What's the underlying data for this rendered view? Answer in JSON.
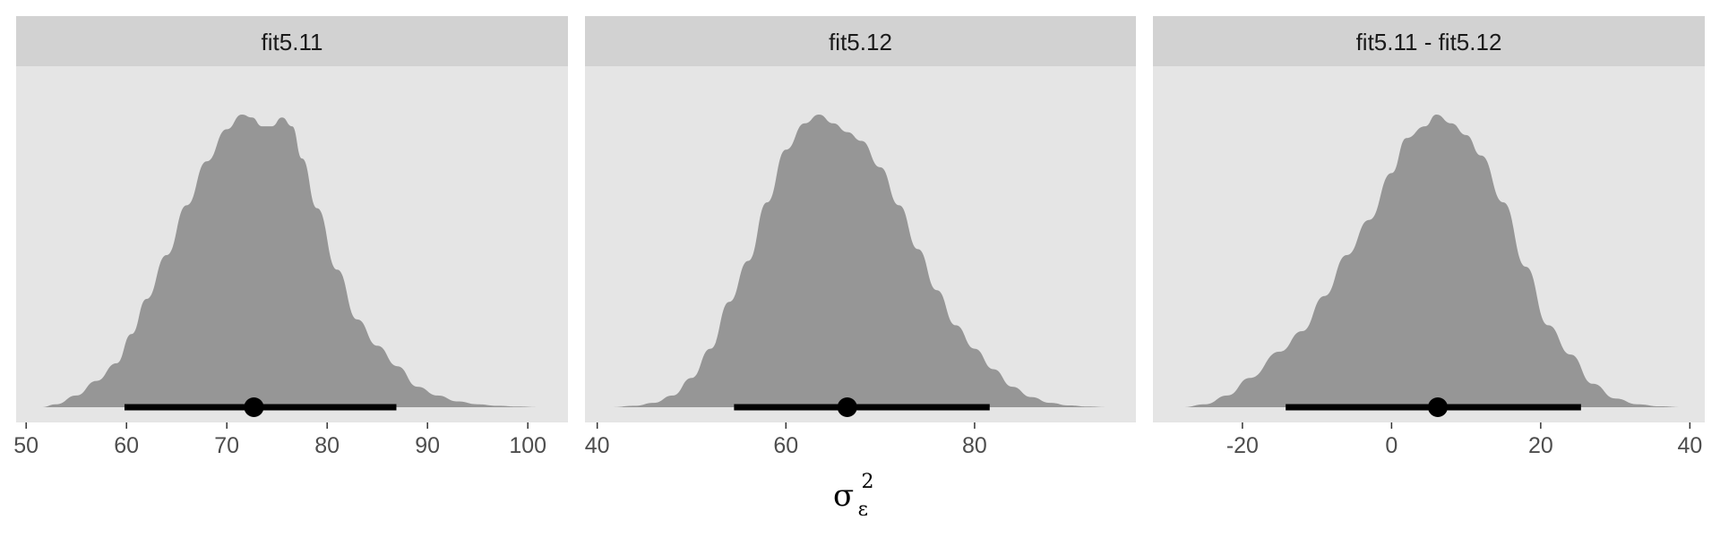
{
  "chart_data": {
    "type": "area",
    "xlabel": {
      "symbol": "σ",
      "subscript": "ε",
      "superscript": "2"
    },
    "panels": [
      {
        "title": "fit5.11",
        "xlim": [
          49,
          104
        ],
        "ticks": [
          50,
          60,
          70,
          80,
          90,
          100
        ],
        "tick_labels": [
          "50",
          "60",
          "70",
          "80",
          "90",
          "100"
        ],
        "density": {
          "x": [
            51.5,
            53,
            55,
            57,
            59,
            60.5,
            62,
            64,
            66,
            68,
            70,
            71.5,
            72.5,
            73.5,
            74.5,
            75.5,
            76.5,
            77.5,
            79,
            81,
            83,
            85,
            87,
            89,
            91,
            93,
            95,
            97,
            99,
            101
          ],
          "y": [
            0.0,
            0.01,
            0.04,
            0.09,
            0.15,
            0.25,
            0.37,
            0.52,
            0.69,
            0.84,
            0.95,
            1.0,
            0.99,
            0.96,
            0.96,
            0.99,
            0.96,
            0.85,
            0.68,
            0.47,
            0.3,
            0.21,
            0.14,
            0.07,
            0.04,
            0.02,
            0.01,
            0.005,
            0.002,
            0.0
          ]
        },
        "point": 72.7,
        "interval": [
          59.8,
          86.9
        ]
      },
      {
        "title": "fit5.12",
        "xlim": [
          38.7,
          97.1
        ],
        "ticks": [
          40,
          60,
          80
        ],
        "tick_labels": [
          "40",
          "60",
          "80"
        ],
        "density": {
          "x": [
            41.5,
            44,
            46,
            48,
            50,
            52,
            54,
            56,
            58,
            60,
            62,
            63.5,
            65,
            66.5,
            68,
            70,
            72,
            74,
            76,
            78,
            80,
            82,
            84,
            86,
            88,
            90,
            92,
            94
          ],
          "y": [
            0.0,
            0.005,
            0.015,
            0.04,
            0.1,
            0.2,
            0.36,
            0.5,
            0.7,
            0.88,
            0.97,
            1.0,
            0.97,
            0.94,
            0.91,
            0.82,
            0.69,
            0.54,
            0.4,
            0.28,
            0.2,
            0.13,
            0.07,
            0.035,
            0.015,
            0.006,
            0.002,
            0.0
          ]
        },
        "point": 66.5,
        "interval": [
          54.5,
          81.6
        ]
      },
      {
        "title": "fit5.11 - fit5.12",
        "xlim": [
          -32,
          42
        ],
        "ticks": [
          -20,
          0,
          20,
          40
        ],
        "tick_labels": [
          "-20",
          "0",
          "20",
          "40"
        ],
        "density": {
          "x": [
            -28,
            -25,
            -22,
            -19,
            -15,
            -12,
            -9,
            -6,
            -3,
            0,
            2,
            4.5,
            6,
            8,
            10,
            12,
            15,
            18,
            21,
            24,
            27,
            30,
            33,
            36,
            39
          ],
          "y": [
            0.0,
            0.01,
            0.04,
            0.1,
            0.19,
            0.26,
            0.38,
            0.52,
            0.64,
            0.8,
            0.92,
            0.96,
            1.0,
            0.97,
            0.93,
            0.86,
            0.7,
            0.48,
            0.28,
            0.18,
            0.08,
            0.03,
            0.01,
            0.003,
            0.0
          ]
        },
        "point": 6.2,
        "interval": [
          -14.2,
          25.4
        ]
      }
    ]
  },
  "colors": {
    "panel_bg": "#e5e5e5",
    "strip_bg": "#d2d2d2",
    "density_fill": "#969696",
    "interval": "#000000",
    "tick": "#333333"
  }
}
